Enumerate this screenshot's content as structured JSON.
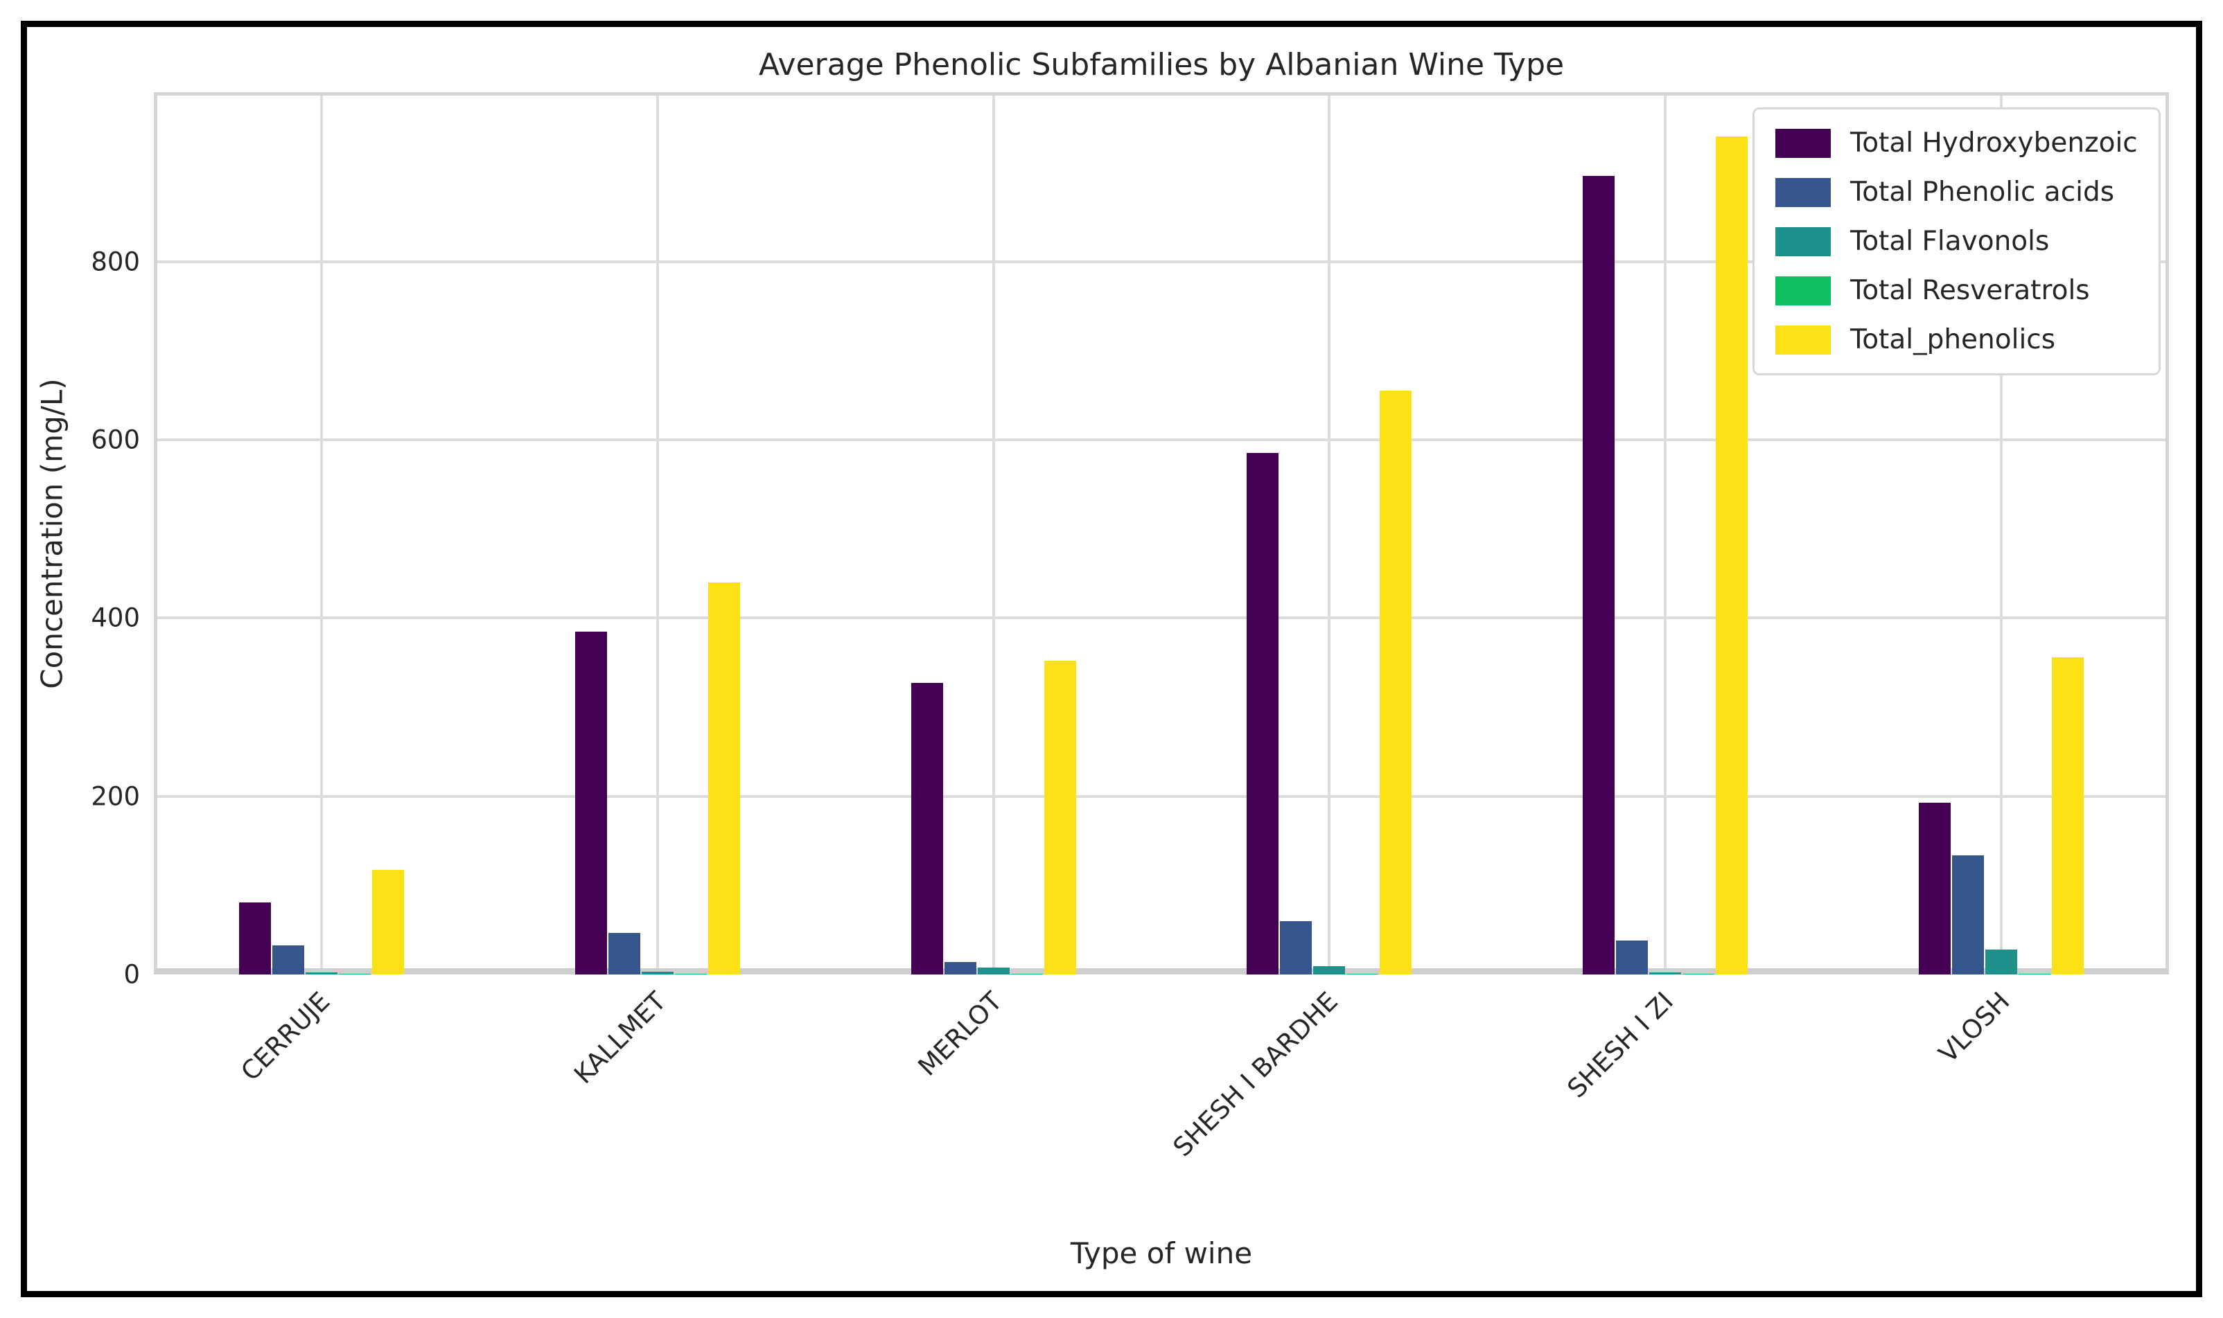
{
  "figure": {
    "background": "#ffffff",
    "frame_color": "#000000",
    "grid_color": "#dcdcdc",
    "spine_color": "#d4d4d4",
    "text_color": "#262626"
  },
  "chart_data": {
    "type": "bar",
    "title": "Average Phenolic Subfamilies by Albanian Wine Type",
    "xlabel": "Type of wine",
    "ylabel": "Concentration (mg/L)",
    "categories": [
      "CERRUJE",
      "KALLMET",
      "MERLOT",
      "SHESH I BARDHE",
      "SHESH I ZI",
      "VLOSH"
    ],
    "series": [
      {
        "name": "Total Hydroxybenzoic",
        "color": "#440154",
        "values": [
          81,
          385,
          327,
          585,
          896,
          193
        ]
      },
      {
        "name": "Total Phenolic acids",
        "color": "#35568c",
        "values": [
          33,
          47,
          14,
          60,
          38,
          134
        ]
      },
      {
        "name": "Total Flavonols",
        "color": "#1f918d",
        "values": [
          2,
          3,
          8,
          9,
          2,
          28
        ]
      },
      {
        "name": "Total Resveratrols",
        "color": "#0ec05f",
        "values": [
          1,
          1,
          1,
          1,
          1,
          1
        ]
      },
      {
        "name": "Total_phenolics",
        "color": "#fbe116",
        "values": [
          117,
          440,
          352,
          655,
          940,
          356
        ]
      }
    ],
    "yticks": [
      0,
      200,
      400,
      600,
      800
    ],
    "ylim": [
      0,
      990
    ],
    "grid": true,
    "legend_position": "upper right",
    "xtick_rotation_deg": 45
  }
}
